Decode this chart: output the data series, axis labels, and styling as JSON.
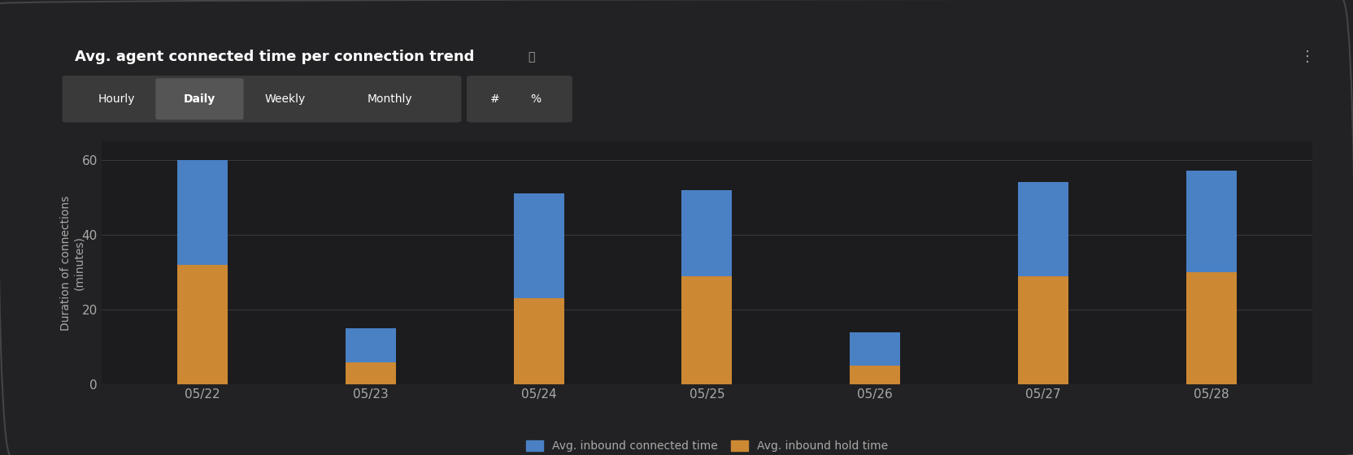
{
  "title": "Avg. agent connected time per connection trend",
  "info_icon": "ⓘ",
  "three_dots": "⋮",
  "ylabel": "Duration of connections\n(minutes)",
  "background_color": "#1c1c1e",
  "text_color": "#aaaaaa",
  "grid_color": "#383838",
  "categories": [
    "05/22",
    "05/23",
    "05/24",
    "05/25",
    "05/26",
    "05/27",
    "05/28"
  ],
  "hold_values": [
    32,
    6,
    23,
    29,
    5,
    29,
    30
  ],
  "connected_values": [
    28,
    9,
    28,
    23,
    9,
    25,
    27
  ],
  "color_connected": "#4a80c4",
  "color_hold": "#cc8833",
  "ylim": [
    0,
    65
  ],
  "yticks": [
    0,
    20,
    40,
    60
  ],
  "legend_connected": "Avg. inbound connected time",
  "legend_hold": "Avg. inbound hold time",
  "bar_width": 0.3,
  "tab_labels_group1": [
    "Hourly",
    "Daily",
    "Weekly",
    "Monthly"
  ],
  "tab_labels_group2": [
    "#",
    "%"
  ],
  "tab_active": "Daily",
  "tab_bg_color": "#3a3a3a",
  "tab_active_bg": "#555555",
  "panel_bg": "#222224",
  "border_color": "#444444"
}
